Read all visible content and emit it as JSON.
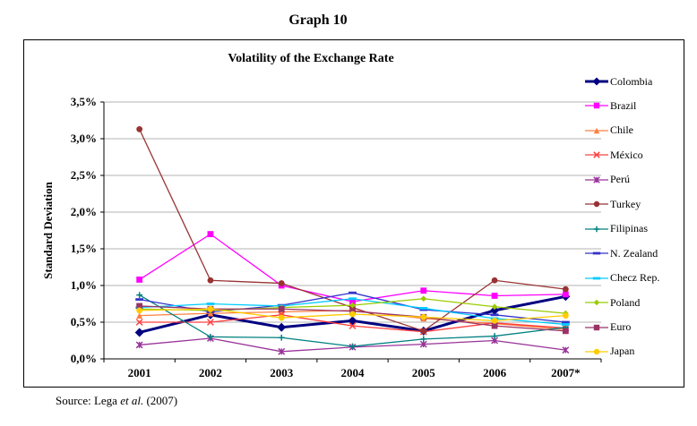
{
  "page": {
    "title": "Graph 10",
    "source": {
      "prefix": "Source: Lega ",
      "italic": "et al.",
      "suffix": " (2007)"
    }
  },
  "chart_data": {
    "type": "line",
    "title": "Volatility of the Exchange Rate",
    "ylabel": "Standard Deviation",
    "xlabel": "",
    "grid": "horizontal",
    "legend_position": "right",
    "x_categories": [
      "2001",
      "2002",
      "2003",
      "2004",
      "2005",
      "2006",
      "2007*"
    ],
    "y_axis": {
      "min": 0,
      "max": 3.5,
      "step": 0.5,
      "unit": "percent",
      "tick_labels": [
        "0,0%",
        "0,5%",
        "1,0%",
        "1,5%",
        "2,0%",
        "2,5%",
        "3,0%",
        "3,5%"
      ]
    },
    "series": [
      {
        "name": "Colombia",
        "color": "#000080",
        "marker": "diamond",
        "line_width": 3,
        "values": [
          0.36,
          0.6,
          0.43,
          0.52,
          0.38,
          0.66,
          0.85
        ]
      },
      {
        "name": "Brazil",
        "color": "#FF00FF",
        "marker": "square",
        "line_width": 1.3,
        "values": [
          1.08,
          1.7,
          1.0,
          0.78,
          0.93,
          0.86,
          0.88
        ]
      },
      {
        "name": "Chile",
        "color": "#FF8040",
        "marker": "triangle",
        "line_width": 1.3,
        "values": [
          0.59,
          0.62,
          0.64,
          0.66,
          0.55,
          0.48,
          0.4
        ]
      },
      {
        "name": "México",
        "color": "#FF4040",
        "marker": "x",
        "line_width": 1.3,
        "values": [
          0.5,
          0.5,
          0.6,
          0.45,
          0.37,
          0.49,
          0.42
        ]
      },
      {
        "name": "Perú",
        "color": "#993399",
        "marker": "asterisk",
        "line_width": 1.3,
        "values": [
          0.19,
          0.28,
          0.1,
          0.16,
          0.2,
          0.25,
          0.12
        ]
      },
      {
        "name": "Turkey",
        "color": "#993333",
        "marker": "circle",
        "line_width": 1.3,
        "values": [
          3.13,
          1.07,
          1.03,
          0.7,
          0.38,
          1.07,
          0.95
        ]
      },
      {
        "name": "Filipinas",
        "color": "#008080",
        "marker": "plus",
        "line_width": 1.3,
        "values": [
          0.87,
          0.3,
          0.29,
          0.17,
          0.27,
          0.31,
          0.43
        ]
      },
      {
        "name": "N. Zealand",
        "color": "#3333CC",
        "marker": "dash",
        "line_width": 1.3,
        "values": [
          0.81,
          0.64,
          0.73,
          0.9,
          0.67,
          0.6,
          0.5
        ]
      },
      {
        "name": "Checz Rep.",
        "color": "#00CCFF",
        "marker": "dash",
        "line_width": 1.3,
        "values": [
          0.7,
          0.75,
          0.72,
          0.82,
          0.69,
          0.55,
          0.47
        ]
      },
      {
        "name": "Poland",
        "color": "#99CC00",
        "marker": "diamond",
        "line_width": 1.3,
        "values": [
          0.68,
          0.66,
          0.7,
          0.73,
          0.82,
          0.71,
          0.62
        ]
      },
      {
        "name": "Euro",
        "color": "#993366",
        "marker": "square",
        "line_width": 1.3,
        "values": [
          0.72,
          0.68,
          0.68,
          0.65,
          0.57,
          0.45,
          0.38
        ]
      },
      {
        "name": "Japan",
        "color": "#FFCC00",
        "marker": "circle",
        "line_width": 1.3,
        "values": [
          0.66,
          0.68,
          0.56,
          0.61,
          0.57,
          0.52,
          0.59
        ]
      }
    ],
    "colors": {
      "gridline": "#b3b3b3",
      "axis": "#000000"
    }
  }
}
